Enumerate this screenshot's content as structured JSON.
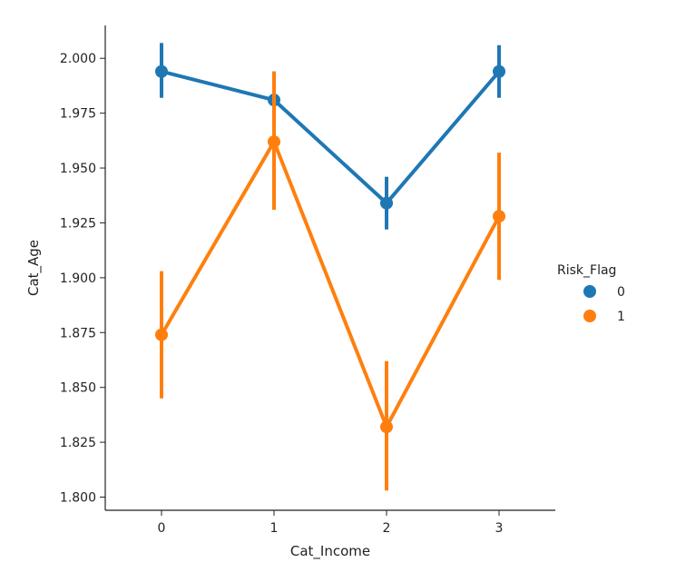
{
  "chart_data": {
    "type": "line",
    "xlabel": "Cat_Income",
    "ylabel": "Cat_Age",
    "categories": [
      "0",
      "1",
      "2",
      "3"
    ],
    "x_ticks": [
      "0",
      "1",
      "2",
      "3"
    ],
    "y_ticks": [
      "1.800",
      "1.825",
      "1.850",
      "1.875",
      "1.900",
      "1.925",
      "1.950",
      "1.975",
      "2.000"
    ],
    "ylim": [
      1.794,
      2.015
    ],
    "grid": false,
    "legend": {
      "title": "Risk_Flag",
      "placement": "right",
      "entries": [
        "0",
        "1"
      ]
    },
    "series": [
      {
        "name": "0",
        "color": "#1f77b4",
        "values": [
          1.994,
          1.981,
          1.934,
          1.994
        ],
        "ci_low": [
          1.982,
          1.968,
          1.922,
          1.982
        ],
        "ci_high": [
          2.007,
          1.994,
          1.946,
          2.006
        ]
      },
      {
        "name": "1",
        "color": "#ff7f0e",
        "values": [
          1.874,
          1.962,
          1.832,
          1.928
        ],
        "ci_low": [
          1.845,
          1.931,
          1.803,
          1.899
        ],
        "ci_high": [
          1.903,
          1.994,
          1.862,
          1.957
        ]
      }
    ]
  }
}
